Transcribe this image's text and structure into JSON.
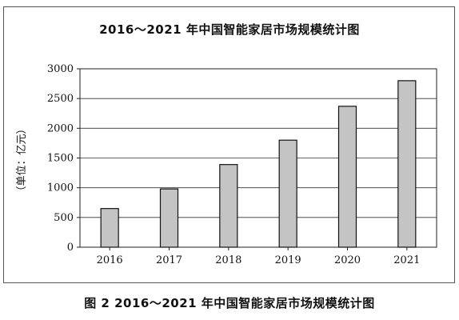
{
  "chart_data": {
    "type": "bar",
    "title": "2016～2021 年中国智能家居市场规模统计图",
    "ylabel": "（单位：亿元）",
    "xlabel": "",
    "categories": [
      "2016",
      "2017",
      "2018",
      "2019",
      "2020",
      "2021"
    ],
    "values": [
      650,
      980,
      1390,
      1800,
      2370,
      2800
    ],
    "ylim": [
      0,
      3000
    ],
    "yticks": [
      0,
      500,
      1000,
      1500,
      2000,
      2500,
      3000
    ],
    "grid": true,
    "bar_color": "#c4c4c4",
    "legend": "none"
  },
  "caption": "图 2   2016～2021 年中国智能家居市场规模统计图"
}
